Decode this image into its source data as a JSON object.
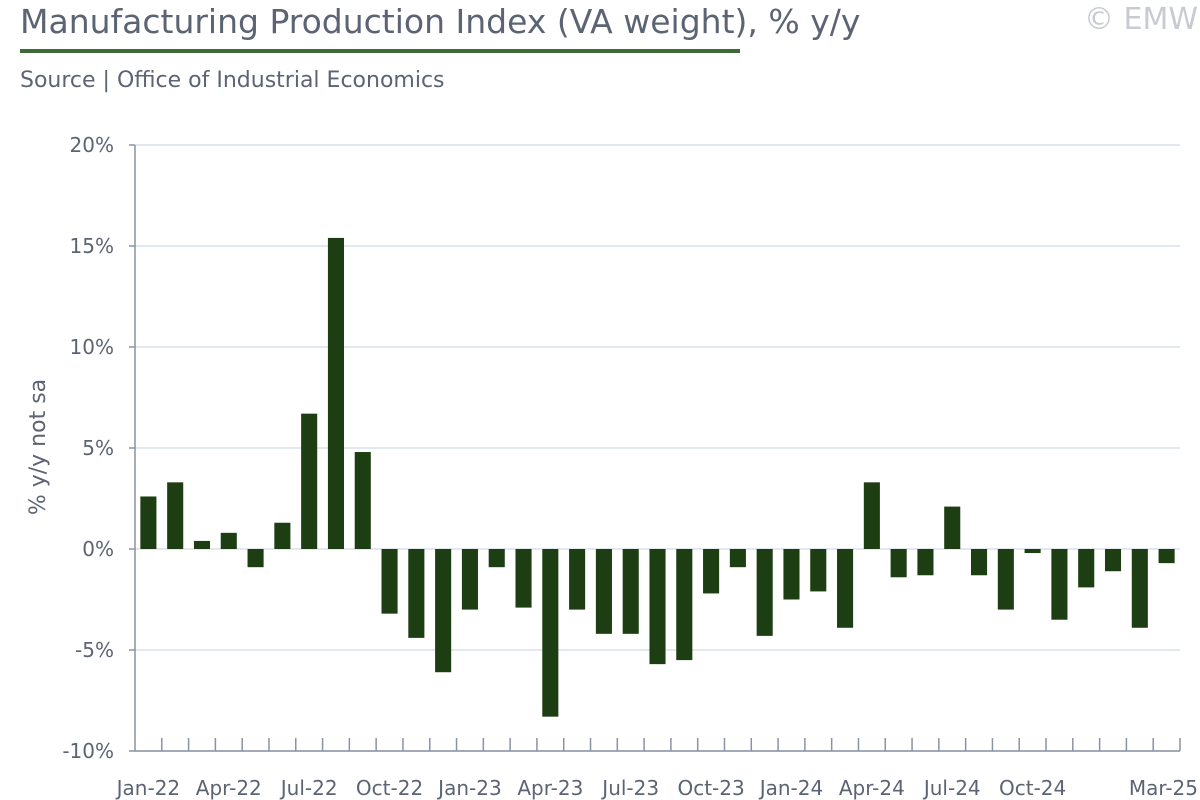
{
  "header": {
    "title": "Manufacturing Production Index (VA weight), % y/y",
    "copyright": "© EMW",
    "source": "Source | Office of Industrial Economics"
  },
  "colors": {
    "bar": "#1d3d12",
    "axis": "#8a93a0",
    "grid": "#d7e0ea",
    "rule": "#3d6b35"
  },
  "chart_data": {
    "type": "bar",
    "ylabel": "% y/y not sa",
    "ylim": [
      -10,
      20
    ],
    "yticks": [
      -10,
      -5,
      0,
      5,
      10,
      15,
      20
    ],
    "ytick_labels": [
      "-10%",
      "-5%",
      "0%",
      "5%",
      "10%",
      "15%",
      "20%"
    ],
    "grid": true,
    "categories": [
      "Jan-22",
      "Feb-22",
      "Mar-22",
      "Apr-22",
      "May-22",
      "Jun-22",
      "Jul-22",
      "Aug-22",
      "Sep-22",
      "Oct-22",
      "Nov-22",
      "Dec-22",
      "Jan-23",
      "Feb-23",
      "Mar-23",
      "Apr-23",
      "May-23",
      "Jun-23",
      "Jul-23",
      "Aug-23",
      "Sep-23",
      "Oct-23",
      "Nov-23",
      "Dec-23",
      "Jan-24",
      "Feb-24",
      "Mar-24",
      "Apr-24",
      "May-24",
      "Jun-24",
      "Jul-24",
      "Aug-24",
      "Sep-24",
      "Oct-24",
      "Nov-24",
      "Dec-24",
      "Jan-25",
      "Feb-25",
      "Mar-25"
    ],
    "xtick_labels": {
      "0": "Jan-22",
      "3": "Apr-22",
      "6": "Jul-22",
      "9": "Oct-22",
      "12": "Jan-23",
      "15": "Apr-23",
      "18": "Jul-23",
      "21": "Oct-23",
      "24": "Jan-24",
      "27": "Apr-24",
      "30": "Jul-24",
      "33": "Oct-24",
      "38": "Mar-25"
    },
    "values": [
      2.6,
      3.3,
      0.4,
      0.8,
      -0.9,
      1.3,
      6.7,
      15.4,
      4.8,
      -3.2,
      -4.4,
      -6.1,
      -3.0,
      -0.9,
      -2.9,
      -8.3,
      -3.0,
      -4.2,
      -4.2,
      -5.7,
      -5.5,
      -2.2,
      -0.9,
      -4.3,
      -2.5,
      -2.1,
      -3.9,
      3.3,
      -1.4,
      -1.3,
      2.1,
      -1.3,
      -3.0,
      -0.2,
      -3.5,
      -1.9,
      -1.1,
      -3.9,
      -0.7
    ]
  }
}
